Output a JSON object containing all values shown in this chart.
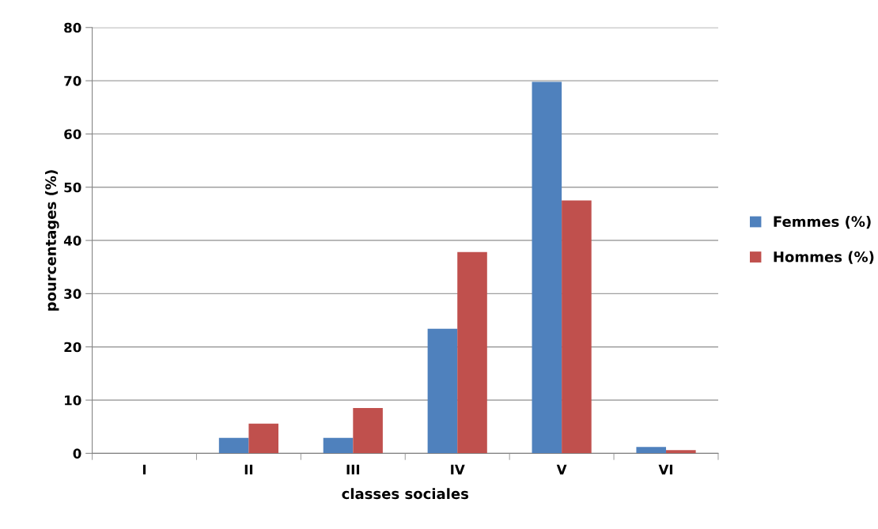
{
  "chart_data": {
    "type": "bar",
    "xlabel": "classes sociales",
    "ylabel": "pourcentages (%)",
    "categories": [
      "I",
      "II",
      "III",
      "IV",
      "V",
      "VI"
    ],
    "series": [
      {
        "name": "Femmes (%)",
        "color": "#4f81bd",
        "values": [
          0,
          2.9,
          2.9,
          23.4,
          69.8,
          1.2
        ]
      },
      {
        "name": "Hommes (%)",
        "color": "#c0504d",
        "values": [
          0,
          5.6,
          8.5,
          37.8,
          47.5,
          0.6
        ]
      }
    ],
    "ylim": [
      0,
      80
    ],
    "yticks": [
      0,
      10,
      20,
      30,
      40,
      50,
      60,
      70,
      80
    ],
    "grid": "y",
    "legend": "right"
  }
}
